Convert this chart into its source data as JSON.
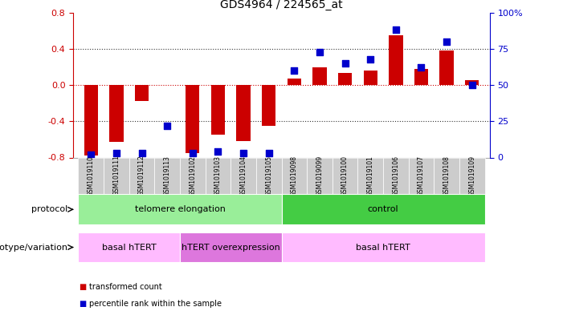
{
  "title": "GDS4964 / 224565_at",
  "samples": [
    "GSM1019110",
    "GSM1019111",
    "GSM1019112",
    "GSM1019113",
    "GSM1019102",
    "GSM1019103",
    "GSM1019104",
    "GSM1019105",
    "GSM1019098",
    "GSM1019099",
    "GSM1019100",
    "GSM1019101",
    "GSM1019106",
    "GSM1019107",
    "GSM1019108",
    "GSM1019109"
  ],
  "transformed_count": [
    -0.78,
    -0.63,
    -0.18,
    0.0,
    -0.75,
    -0.55,
    -0.62,
    -0.45,
    0.07,
    0.2,
    0.13,
    0.16,
    0.55,
    0.18,
    0.38,
    0.05
  ],
  "percentile_rank": [
    2,
    3,
    3,
    22,
    3,
    4,
    3,
    3,
    60,
    73,
    65,
    68,
    88,
    62,
    80,
    50
  ],
  "ylim_left": [
    -0.8,
    0.8
  ],
  "ylim_right": [
    0,
    100
  ],
  "yticks_left": [
    -0.8,
    -0.4,
    0.0,
    0.4,
    0.8
  ],
  "yticks_right": [
    0,
    25,
    50,
    75,
    100
  ],
  "ytick_labels_right": [
    "0",
    "25",
    "50",
    "75",
    "100%"
  ],
  "bar_color": "#cc0000",
  "scatter_color": "#0000cc",
  "protocol_groups": [
    {
      "label": "telomere elongation",
      "start": 0,
      "end": 7,
      "color": "#99ee99"
    },
    {
      "label": "control",
      "start": 8,
      "end": 15,
      "color": "#44cc44"
    }
  ],
  "genotype_groups": [
    {
      "label": "basal hTERT",
      "start": 0,
      "end": 3,
      "color": "#ffbbff"
    },
    {
      "label": "hTERT overexpression",
      "start": 4,
      "end": 7,
      "color": "#dd77dd"
    },
    {
      "label": "basal hTERT",
      "start": 8,
      "end": 15,
      "color": "#ffbbff"
    }
  ],
  "bg_color": "#ffffff",
  "tick_bg": "#cccccc"
}
